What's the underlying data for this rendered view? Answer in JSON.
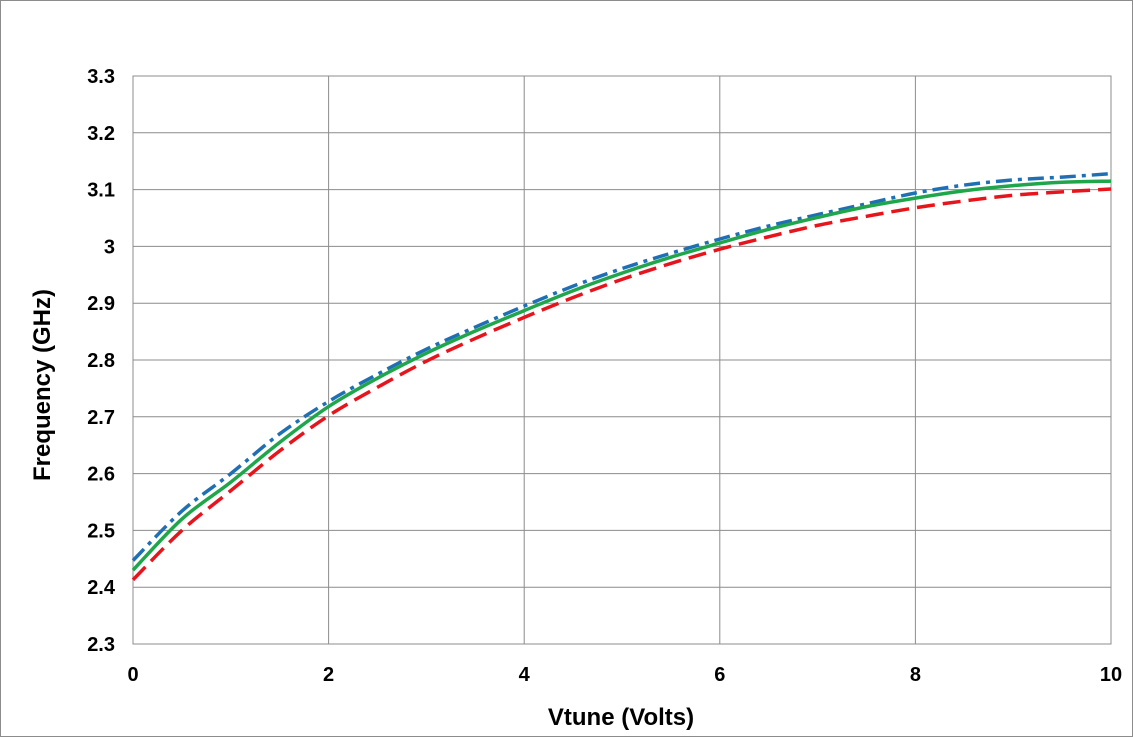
{
  "chart_data": {
    "type": "line",
    "title": "",
    "xlabel": "Vtune (Volts)",
    "ylabel": "Frequency (GHz)",
    "xlim": [
      0,
      10
    ],
    "ylim": [
      2.3,
      3.3
    ],
    "grid": true,
    "legend": "none",
    "x_ticks": [
      "0",
      "2",
      "4",
      "6",
      "8",
      "10"
    ],
    "y_ticks": [
      "2.3",
      "2.4",
      "2.5",
      "2.6",
      "2.7",
      "2.8",
      "2.9",
      "3",
      "3.1",
      "3.2",
      "3.3"
    ],
    "x": [
      0,
      0.5,
      1,
      1.5,
      2,
      2.5,
      3,
      3.5,
      4,
      4.5,
      5,
      5.5,
      6,
      6.5,
      7,
      7.5,
      8,
      8.5,
      9,
      9.5,
      10
    ],
    "series": [
      {
        "color": "#1f6fb4",
        "dash": "dash-dot",
        "values": [
          2.447,
          2.534,
          2.6,
          2.67,
          2.727,
          2.775,
          2.819,
          2.858,
          2.895,
          2.93,
          2.961,
          2.988,
          3.013,
          3.036,
          3.056,
          3.075,
          3.094,
          3.108,
          3.117,
          3.122,
          3.128
        ]
      },
      {
        "color": "#e8141c",
        "dash": "dash",
        "values": [
          2.413,
          2.5,
          2.57,
          2.64,
          2.702,
          2.752,
          2.798,
          2.838,
          2.875,
          2.91,
          2.942,
          2.97,
          2.995,
          3.017,
          3.037,
          3.053,
          3.068,
          3.08,
          3.09,
          3.096,
          3.101
        ]
      },
      {
        "color": "#1fa64b",
        "dash": "solid",
        "values": [
          2.43,
          2.52,
          2.585,
          2.655,
          2.718,
          2.768,
          2.812,
          2.851,
          2.887,
          2.922,
          2.953,
          2.981,
          3.006,
          3.03,
          3.051,
          3.07,
          3.085,
          3.098,
          3.107,
          3.113,
          3.115
        ]
      }
    ]
  }
}
